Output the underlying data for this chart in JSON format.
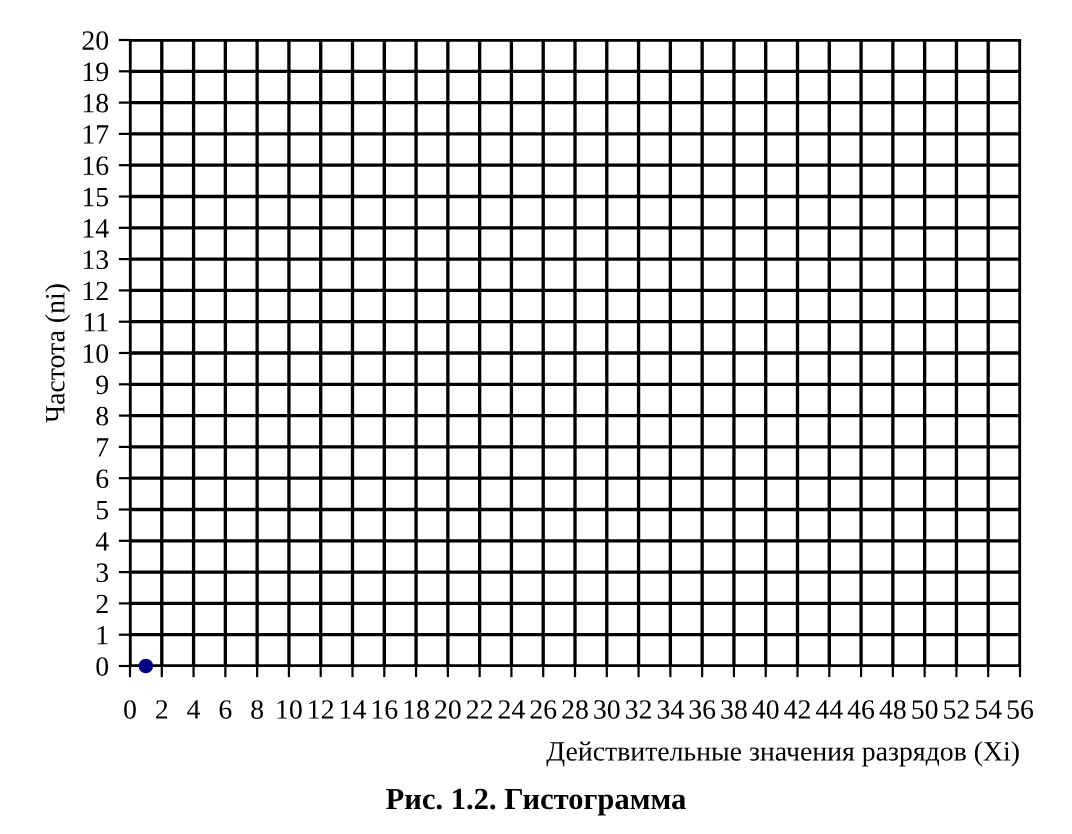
{
  "chart_data": {
    "type": "scatter",
    "title": "Рис. 1.2. Гистограмма",
    "xlabel": "Действительные значения разрядов (Xi)",
    "ylabel": "Частота (ni)",
    "x": [
      1
    ],
    "values": [
      0
    ],
    "color": "#000080",
    "marker": "circle",
    "xlim": [
      0,
      56
    ],
    "xticks": [
      0,
      2,
      4,
      6,
      8,
      10,
      12,
      14,
      16,
      18,
      20,
      22,
      24,
      26,
      28,
      30,
      32,
      34,
      36,
      38,
      40,
      42,
      44,
      46,
      48,
      50,
      52,
      54,
      56
    ],
    "ylim": [
      0,
      20
    ],
    "yticks": [
      0,
      1,
      2,
      3,
      4,
      5,
      6,
      7,
      8,
      9,
      10,
      11,
      12,
      13,
      14,
      15,
      16,
      17,
      18,
      19,
      20
    ],
    "grid": true
  }
}
